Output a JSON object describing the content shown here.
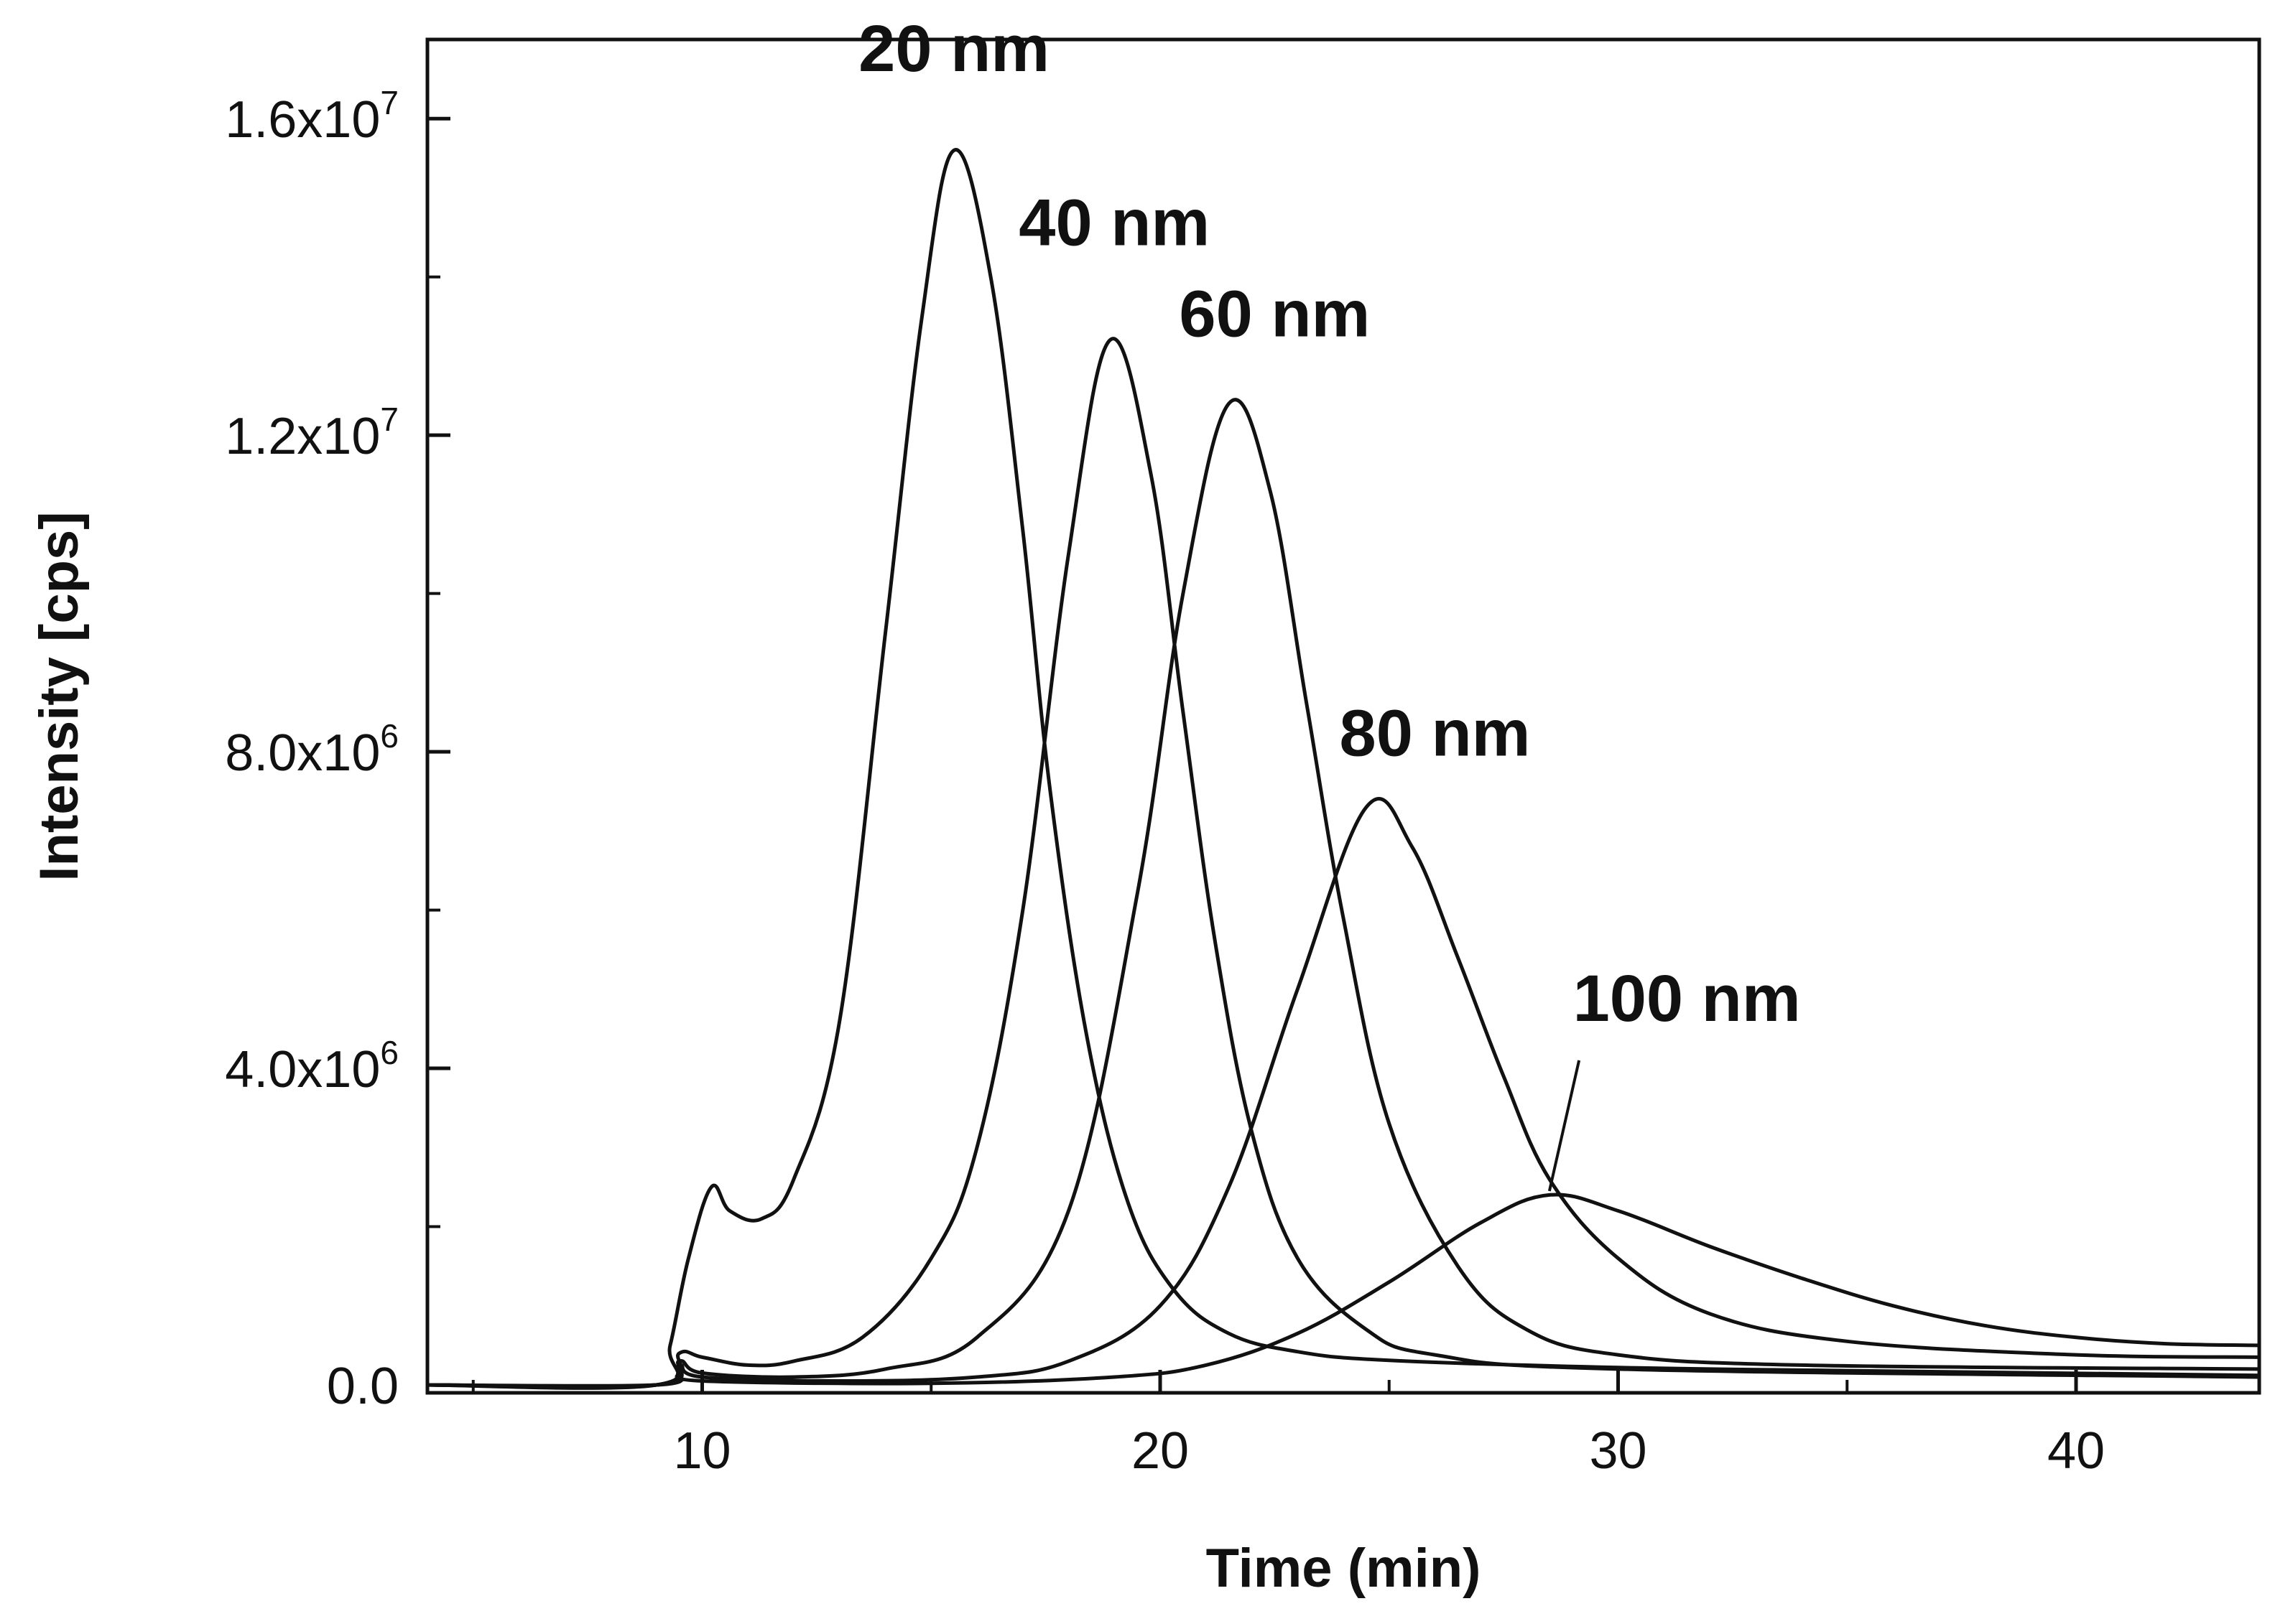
{
  "chart_data": {
    "type": "line",
    "title": "",
    "xlabel": "Time (min)",
    "ylabel": "Intensity [cps]",
    "xlim": [
      4,
      44
    ],
    "ylim": [
      -100000,
      17000000
    ],
    "x_ticks": [
      {
        "value": 10,
        "label": "10"
      },
      {
        "value": 20,
        "label": "20"
      },
      {
        "value": 30,
        "label": "30"
      },
      {
        "value": 40,
        "label": "40"
      }
    ],
    "y_ticks": [
      {
        "value": 0,
        "label": "0.0",
        "exp": ""
      },
      {
        "value": 4000000,
        "label": "4.0x10",
        "exp": "6"
      },
      {
        "value": 8000000,
        "label": "8.0x10",
        "exp": "6"
      },
      {
        "value": 12000000,
        "label": "1.2x10",
        "exp": "7"
      },
      {
        "value": 16000000,
        "label": "1.6x10",
        "exp": "7"
      }
    ],
    "series": [
      {
        "name": "20 nm",
        "x": [
          4,
          9,
          9.3,
          9.7,
          10.2,
          10.6,
          11.3,
          12,
          13,
          14,
          14.8,
          15.5,
          16.3,
          17,
          17.6,
          18.4,
          19.3,
          20.3,
          21.5,
          23,
          25,
          30,
          35,
          44
        ],
        "y": [
          0,
          0,
          500000,
          1600000,
          2500000,
          2200000,
          2100000,
          2600000,
          4600000,
          9500000,
          13500000,
          15600000,
          14000000,
          10800000,
          7500000,
          4400000,
          2300000,
          1200000,
          650000,
          420000,
          310000,
          220000,
          180000,
          120000
        ]
      },
      {
        "name": "40 nm",
        "x": [
          4,
          9,
          9.5,
          10,
          11,
          12,
          13.5,
          15,
          16,
          17,
          18,
          18.9,
          19.8,
          20.5,
          21.2,
          22,
          23,
          24.5,
          26,
          30,
          44
        ],
        "y": [
          0,
          0,
          400000,
          350000,
          250000,
          300000,
          600000,
          1600000,
          3000000,
          6000000,
          10500000,
          13200000,
          11500000,
          8500000,
          5600000,
          3200000,
          1600000,
          700000,
          380000,
          200000,
          100000
        ]
      },
      {
        "name": "60 nm",
        "x": [
          4,
          9,
          9.5,
          10,
          12,
          14,
          16,
          18,
          19.5,
          20.5,
          21.5,
          22.4,
          23.2,
          24,
          25,
          26.5,
          28,
          30,
          34,
          44
        ],
        "y": [
          0,
          0,
          300000,
          150000,
          100000,
          200000,
          600000,
          2200000,
          6200000,
          10000000,
          12400000,
          11300000,
          8600000,
          5900000,
          3300000,
          1500000,
          700000,
          380000,
          250000,
          200000
        ]
      },
      {
        "name": "80 nm",
        "x": [
          4,
          9,
          9.5,
          10,
          13,
          16,
          18,
          20,
          21.5,
          23,
          24.5,
          25.5,
          26.5,
          27.5,
          28.5,
          30,
          32,
          35,
          40,
          44
        ],
        "y": [
          0,
          0,
          250000,
          100000,
          50000,
          100000,
          300000,
          1000000,
          2500000,
          5000000,
          7300000,
          6800000,
          5400000,
          3900000,
          2600000,
          1600000,
          900000,
          550000,
          380000,
          350000
        ]
      },
      {
        "name": "100 nm",
        "x": [
          4,
          9,
          9.5,
          10,
          15,
          19,
          21,
          23,
          25,
          27,
          28.5,
          30,
          32,
          34,
          36,
          38,
          40,
          42,
          44
        ],
        "y": [
          0,
          0,
          150000,
          50000,
          20000,
          100000,
          250000,
          650000,
          1300000,
          2050000,
          2400000,
          2200000,
          1750000,
          1350000,
          1000000,
          750000,
          600000,
          520000,
          500000
        ]
      }
    ],
    "annotations": [
      {
        "text": "20 nm",
        "x": 15.5,
        "y": 16600000
      },
      {
        "text": "40 nm",
        "x": 19.0,
        "y": 14400000
      },
      {
        "text": "60 nm",
        "x": 22.5,
        "y": 13250000
      },
      {
        "text": "80 nm",
        "x": 26.0,
        "y": 7950000
      },
      {
        "text": "100 nm",
        "x": 31.5,
        "y": 4600000,
        "pointer_to": {
          "x": 28.5,
          "y": 2450000
        }
      }
    ]
  }
}
